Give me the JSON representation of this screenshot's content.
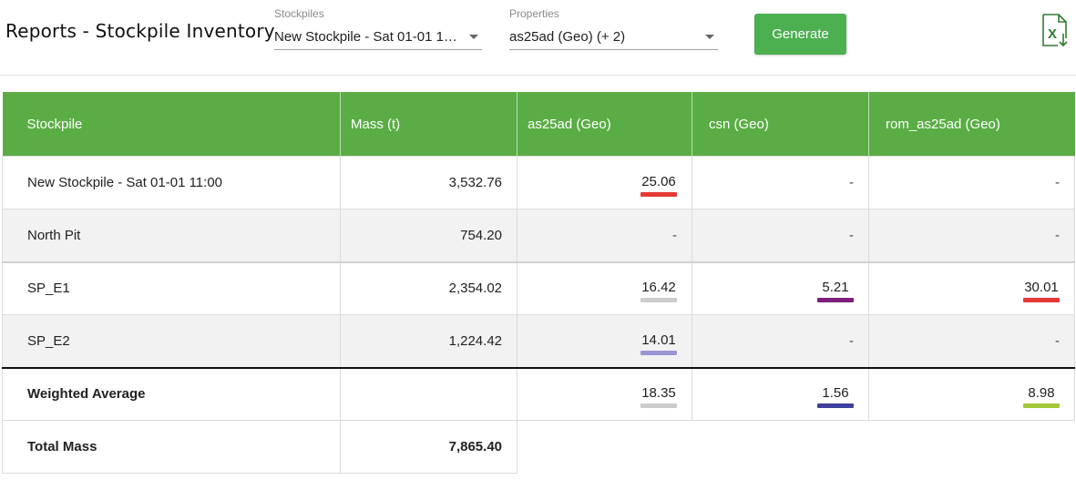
{
  "header": {
    "title": "Reports - Stockpile Inventory",
    "stockpiles_label": "Stockpiles",
    "stockpiles_value": "New Stockpile - Sat 01-01 1…",
    "properties_label": "Properties",
    "properties_value": "as25ad (Geo) (+ 2)",
    "generate_label": "Generate",
    "export_icon": "excel-export-icon",
    "accent_color": "#4caf50"
  },
  "table": {
    "columns": [
      "Stockpile",
      "Mass (t)",
      "as25ad (Geo)",
      "csn (Geo)",
      "rom_as25ad (Geo)"
    ],
    "rows": [
      {
        "name": "New Stockpile - Sat 01-01 11:00",
        "mass": "3,532.76",
        "as25ad": "25.06",
        "as25ad_color": "#e53935",
        "csn": "-",
        "rom": "-"
      },
      {
        "name": "North Pit",
        "mass": "754.20",
        "as25ad": "-",
        "csn": "-",
        "rom": "-"
      },
      {
        "name": "SP_E1",
        "mass": "2,354.02",
        "as25ad": "16.42",
        "as25ad_color": "#cccccc",
        "csn": "5.21",
        "csn_color": "#7b1f7a",
        "rom": "30.01",
        "rom_color": "#e53935"
      },
      {
        "name": "SP_E2",
        "mass": "1,224.42",
        "as25ad": "14.01",
        "as25ad_color": "#9b95d4",
        "csn": "-",
        "rom": "-"
      }
    ],
    "weighted_average": {
      "label": "Weighted Average",
      "as25ad": "18.35",
      "as25ad_color": "#cccccc",
      "csn": "1.56",
      "csn_color": "#3f3f9e",
      "rom": "8.98",
      "rom_color": "#a4c639"
    },
    "total": {
      "label": "Total Mass",
      "mass": "7,865.40"
    }
  }
}
